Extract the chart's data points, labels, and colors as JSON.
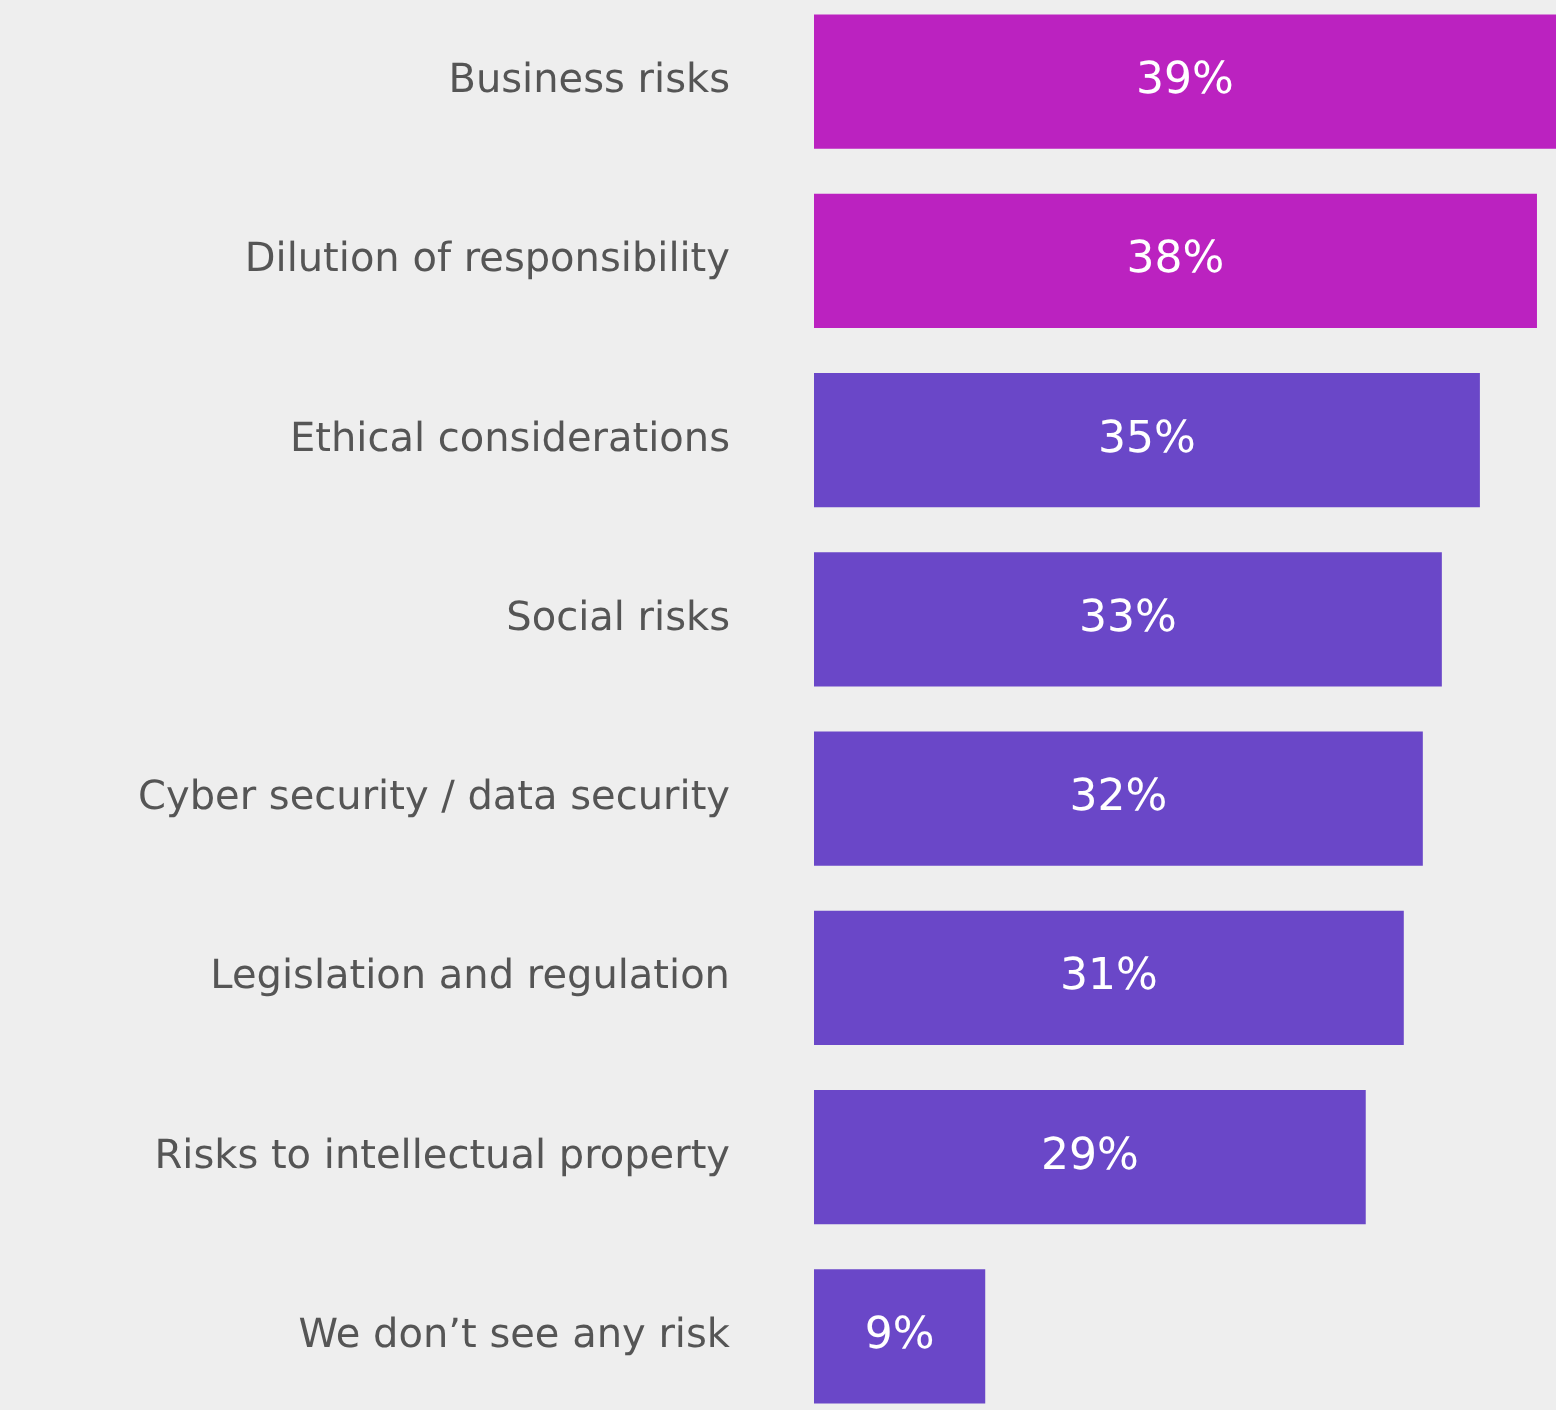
{
  "chart_data": {
    "type": "bar",
    "orientation": "horizontal",
    "categories": [
      "Business risks",
      "Dilution of responsibility",
      "Ethical considerations",
      "Social risks",
      "Cyber security / data security",
      "Legislation and regulation",
      "Risks to intellectual property",
      "We don’t see any risk"
    ],
    "values": [
      39,
      38,
      35,
      33,
      32,
      31,
      29,
      9
    ],
    "colors": [
      "#bb22c0",
      "#bb22c0",
      "#6a47c8",
      "#6a47c8",
      "#6a47c8",
      "#6a47c8",
      "#6a47c8",
      "#6a47c8"
    ],
    "value_labels": [
      "39%",
      "38%",
      "35%",
      "33%",
      "32%",
      "31%",
      "29%",
      "9%"
    ]
  }
}
